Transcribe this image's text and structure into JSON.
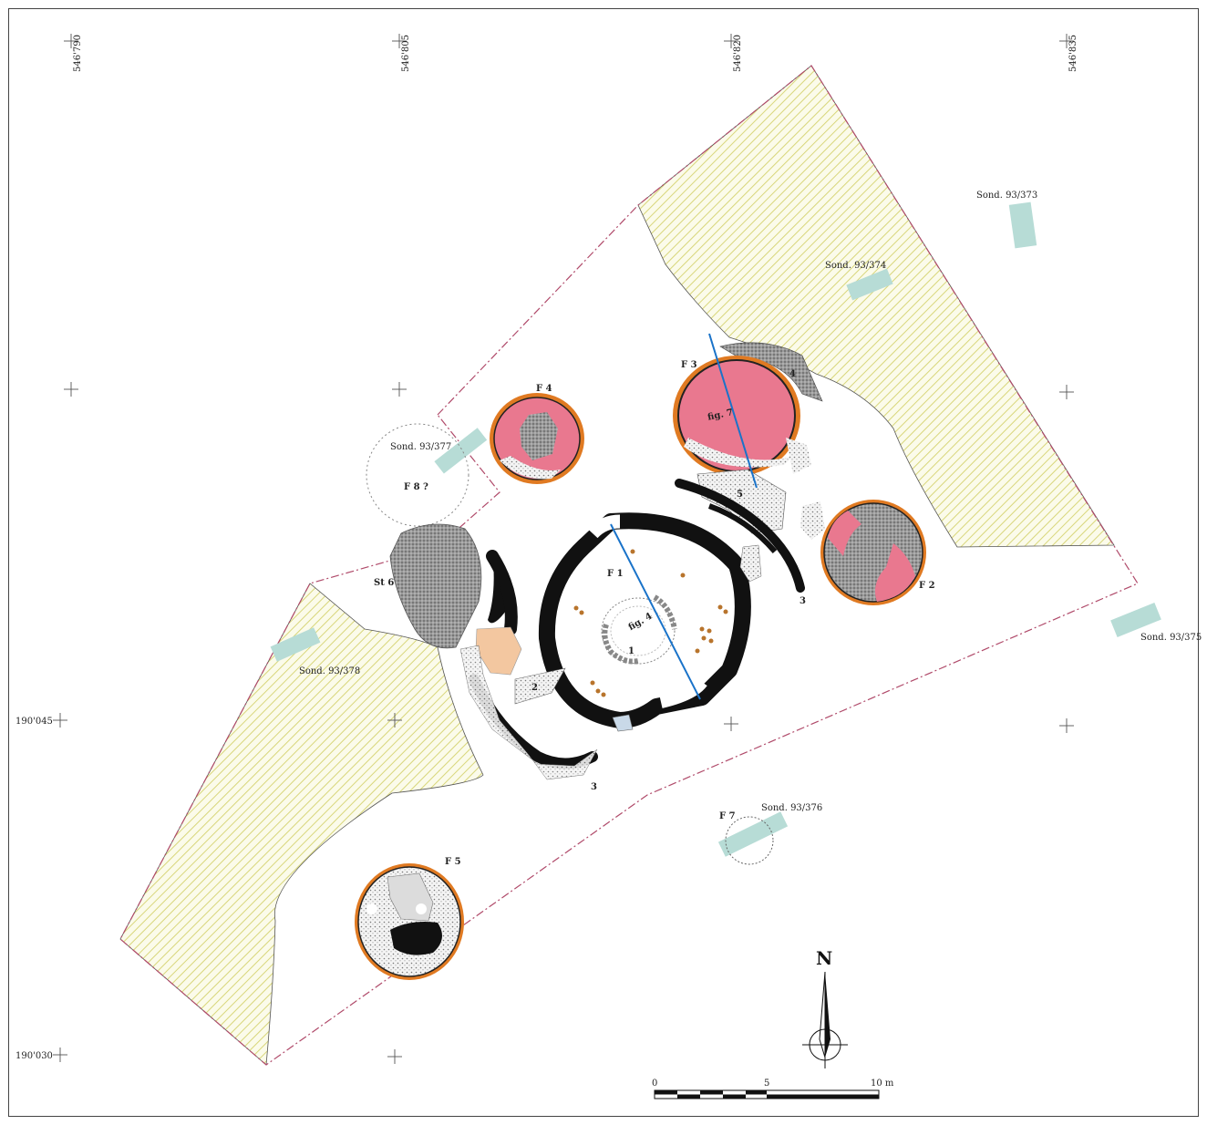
{
  "grid": {
    "x_coords": [
      "546'790",
      "546'805",
      "546'820",
      "546'835"
    ],
    "y_coords": [
      "190'045",
      "190'030"
    ]
  },
  "features": {
    "f1": "F 1",
    "f2": "F 2",
    "f3": "F 3",
    "f4": "F 4",
    "f5": "F 5",
    "f7": "F 7",
    "f8": "F 8 ?",
    "st6": "St 6"
  },
  "soundings": {
    "s373": "Sond. 93/373",
    "s374": "Sond. 93/374",
    "s375": "Sond. 93/375",
    "s376": "Sond. 93/376",
    "s377": "Sond. 93/377",
    "s378": "Sond. 93/378"
  },
  "figure_refs": {
    "fig4": "fig. 4",
    "fig7": "fig. 7"
  },
  "numbers": {
    "n1": "1",
    "n2": "2",
    "n3a": "3",
    "n3b": "3",
    "n4": "4",
    "n5": "5"
  },
  "north_arrow": "N",
  "scale_bar": {
    "ticks": [
      "0",
      "5",
      "10 m"
    ]
  },
  "colors": {
    "hatch": "#d8d67a",
    "pit_fill": "#e9788f",
    "rim": "#e07a22",
    "sounding": "#b7dcd6",
    "section_line": "#1a73c9",
    "stone": "#8f8f8f",
    "ochre": "#f3c7a0",
    "boundary": "#b04a6a"
  }
}
